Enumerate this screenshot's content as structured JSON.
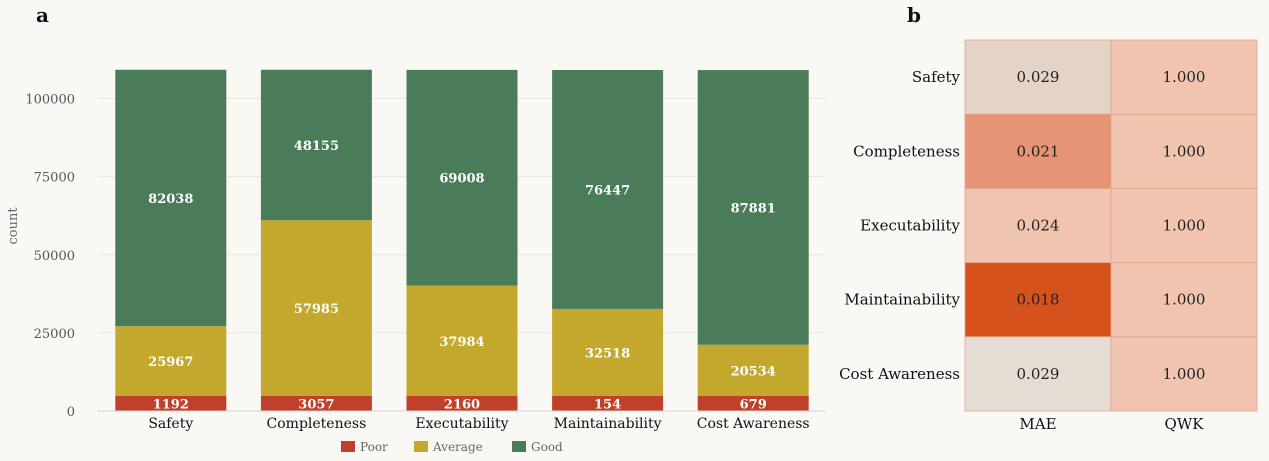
{
  "panels": {
    "a": "a",
    "b": "b"
  },
  "chart_data": [
    {
      "type": "bar",
      "stacked": true,
      "categories": [
        "Safety",
        "Completeness",
        "Executability",
        "Maintainability",
        "Cost Awareness"
      ],
      "series": [
        {
          "name": "Poor",
          "color": "#c0412b",
          "values": [
            1192,
            3057,
            2160,
            154,
            679
          ]
        },
        {
          "name": "Average",
          "color": "#c4a82d",
          "values": [
            25967,
            57985,
            37984,
            32518,
            20534
          ]
        },
        {
          "name": "Good",
          "color": "#4a7c5a",
          "values": [
            82038,
            48155,
            69008,
            76447,
            87881
          ]
        }
      ],
      "ylabel": "count",
      "yticks": [
        0,
        25000,
        50000,
        75000,
        100000
      ],
      "ylim": [
        0,
        120000
      ],
      "legend": "bottom",
      "grid": true
    },
    {
      "type": "heatmap",
      "rows": [
        "Safety",
        "Completeness",
        "Executability",
        "Maintainability",
        "Cost Awareness"
      ],
      "columns": [
        "MAE",
        "QWK"
      ],
      "values": [
        [
          "0.029",
          "1.000"
        ],
        [
          "0.021",
          "1.000"
        ],
        [
          "0.024",
          "1.000"
        ],
        [
          "0.018",
          "1.000"
        ],
        [
          "0.029",
          "1.000"
        ]
      ],
      "cell_colors": [
        [
          "#e4d3c7",
          "#f0c4b1"
        ],
        [
          "#e59475",
          "#f0c4b1"
        ],
        [
          "#f0c4b1",
          "#f0c4b1"
        ],
        [
          "#d5521d",
          "#f0c4b1"
        ],
        [
          "#e5dcd3",
          "#f0c4b1"
        ]
      ]
    }
  ]
}
